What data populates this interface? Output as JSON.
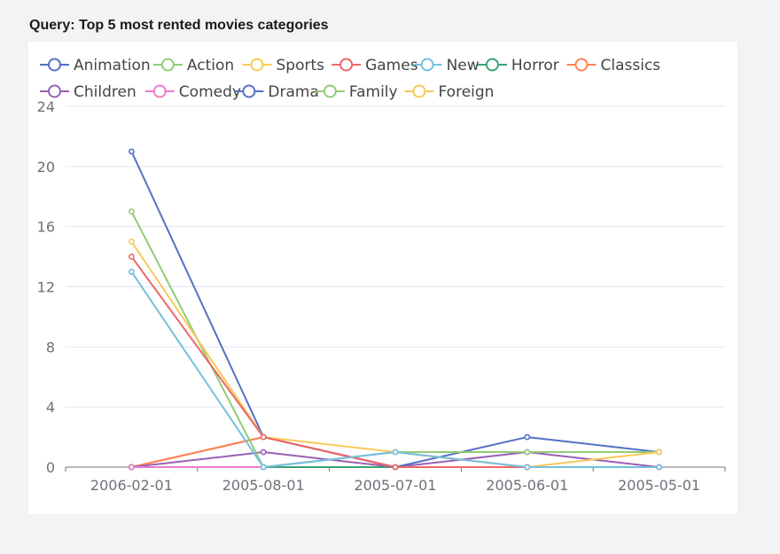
{
  "query": {
    "title": "Query: Top 5 most rented movies categories"
  },
  "chart_data": {
    "type": "line",
    "title": "",
    "xlabel": "",
    "ylabel": "",
    "categories": [
      "2006-02-01",
      "2005-08-01",
      "2005-07-01",
      "2005-06-01",
      "2005-05-01"
    ],
    "ylim": [
      0,
      24
    ],
    "yticks": [
      0,
      4,
      8,
      12,
      16,
      20,
      24
    ],
    "grid": true,
    "legend_position": "top",
    "series": [
      {
        "name": "Animation",
        "color": "#5470c6",
        "values": [
          0,
          0,
          0,
          0,
          0
        ]
      },
      {
        "name": "Action",
        "color": "#91cc75",
        "values": [
          0,
          0,
          0,
          0,
          0
        ]
      },
      {
        "name": "Sports",
        "color": "#fac858",
        "values": [
          0,
          0,
          0,
          0,
          0
        ]
      },
      {
        "name": "Games",
        "color": "#ee6666",
        "values": [
          0,
          2,
          0,
          0,
          0
        ]
      },
      {
        "name": "New",
        "color": "#73c0de",
        "values": [
          0,
          0,
          0,
          0,
          0
        ]
      },
      {
        "name": "Horror",
        "color": "#3ba272",
        "values": [
          0,
          0,
          0,
          0,
          0
        ]
      },
      {
        "name": "Classics",
        "color": "#fc8452",
        "values": [
          0,
          2,
          0,
          0,
          0
        ]
      },
      {
        "name": "Children",
        "color": "#9a60b4",
        "values": [
          0,
          1,
          0,
          1,
          0
        ]
      },
      {
        "name": "Comedy",
        "color": "#ea7ccc",
        "values": [
          0,
          0,
          1,
          0,
          0
        ]
      },
      {
        "name": "Drama",
        "color": "#5470c6",
        "values": [
          21,
          2,
          0,
          2,
          1
        ]
      },
      {
        "name": "Family",
        "color": "#91cc75",
        "values": [
          17,
          0,
          1,
          1,
          1
        ]
      },
      {
        "name": "Foreign",
        "color": "#fac858",
        "values": [
          15,
          2,
          1,
          0,
          1
        ]
      },
      {
        "name": "Games",
        "color": "#ee6666",
        "values": [
          14,
          2,
          0,
          0,
          0
        ]
      },
      {
        "name": "New",
        "color": "#73c0de",
        "values": [
          13,
          0,
          1,
          0,
          0
        ]
      }
    ]
  }
}
